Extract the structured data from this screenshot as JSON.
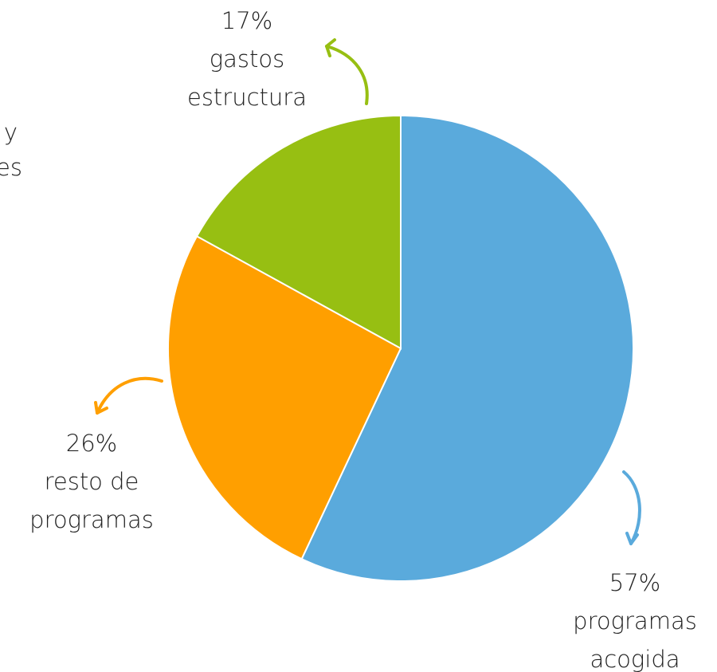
{
  "chart_data": {
    "type": "pie",
    "categories": [
      "programas\nacogida",
      "resto de\nprogramas",
      "gastos\nestructura"
    ],
    "values": [
      57,
      26,
      17
    ],
    "value_labels": [
      "57%",
      "26%",
      "17%"
    ],
    "colors": [
      "#5aaadc",
      "#ff9f00",
      "#97bf12"
    ],
    "annotations": [
      "y",
      "es"
    ]
  }
}
